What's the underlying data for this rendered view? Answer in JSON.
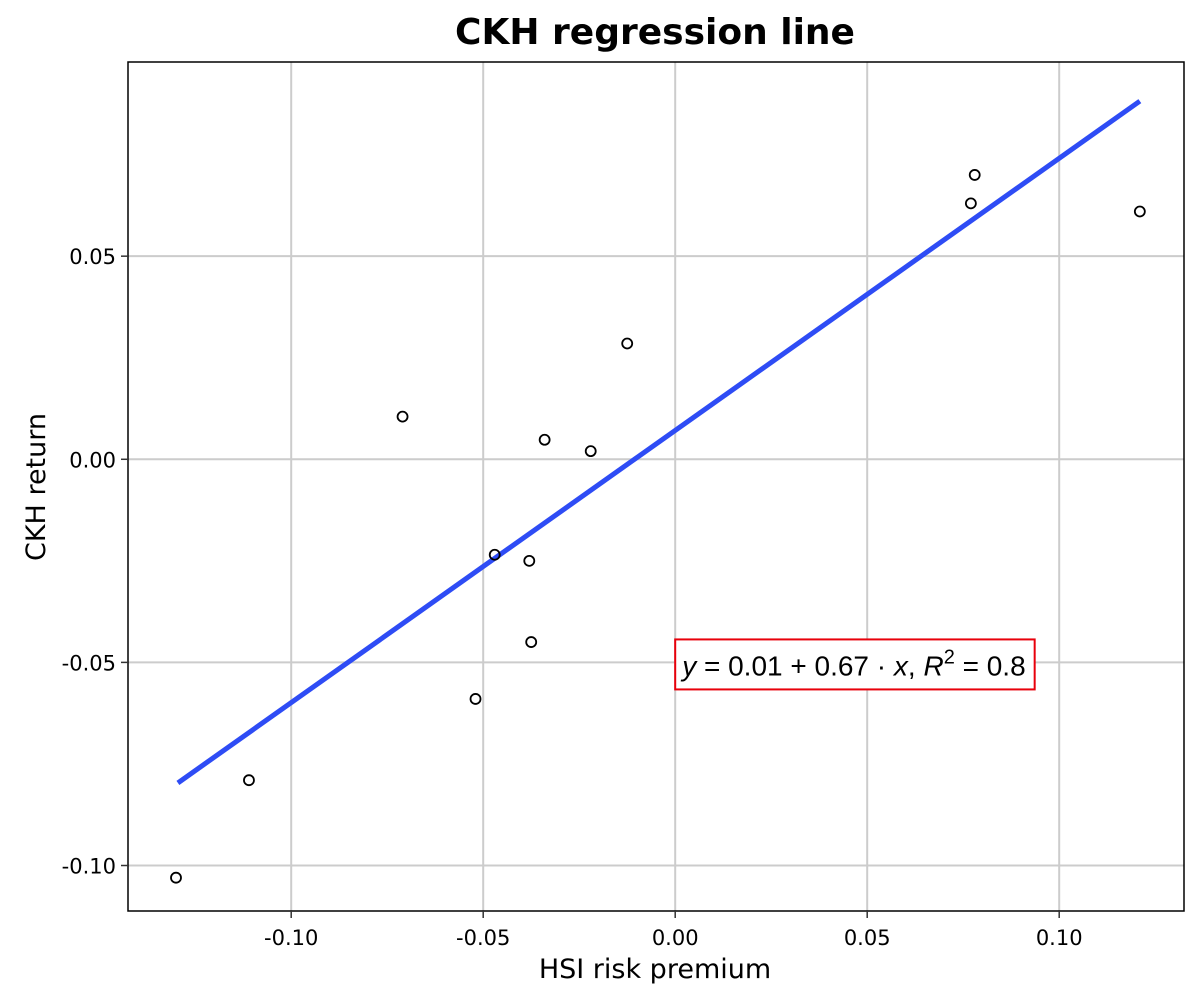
{
  "chart_data": {
    "type": "scatter",
    "title": "CKH regression line",
    "xlabel": "HSI risk premium",
    "ylabel": "CKH return",
    "xlim": [
      -0.1425,
      0.1325
    ],
    "ylim": [
      -0.1112,
      0.0978
    ],
    "x_ticks": [
      -0.1,
      -0.05,
      0.0,
      0.05,
      0.1
    ],
    "x_tick_labels": [
      "-0.10",
      "-0.05",
      "0.00",
      "0.05",
      "0.10"
    ],
    "y_ticks": [
      -0.1,
      -0.05,
      0.0,
      0.05
    ],
    "y_tick_labels": [
      "-0.10",
      "-0.05",
      "0.00",
      "0.05"
    ],
    "grid": true,
    "series": [
      {
        "type": "scatter",
        "marker": "open-circle",
        "color": "#000000",
        "points": [
          {
            "x": -0.13,
            "y": -0.103
          },
          {
            "x": -0.111,
            "y": -0.079
          },
          {
            "x": -0.071,
            "y": 0.0105
          },
          {
            "x": -0.052,
            "y": -0.059
          },
          {
            "x": -0.047,
            "y": -0.0235
          },
          {
            "x": -0.038,
            "y": -0.025
          },
          {
            "x": -0.0375,
            "y": -0.045
          },
          {
            "x": -0.034,
            "y": 0.0048
          },
          {
            "x": -0.022,
            "y": 0.002
          },
          {
            "x": -0.0125,
            "y": 0.0285
          },
          {
            "x": 0.077,
            "y": 0.063
          },
          {
            "x": 0.078,
            "y": 0.07
          },
          {
            "x": 0.121,
            "y": 0.061
          }
        ]
      },
      {
        "type": "line",
        "color": "#2e4cf5",
        "intercept": 0.0071,
        "slope": 0.67,
        "x_range": [
          -0.1295,
          0.121
        ]
      }
    ],
    "annotation": {
      "text_y": "y",
      "text_eq": " = 0.01 + 0.67 · ",
      "text_x": "x",
      "text_sep": ",  ",
      "text_r": "R",
      "text_sup": "2",
      "text_val": " = 0.8",
      "anchor_x": 0.0,
      "anchor_y": -0.0505,
      "border_color": "#e8000b"
    },
    "colors": {
      "grid": "#cccccc",
      "frame": "#000000",
      "line": "#2e4cf5",
      "points": "#000000"
    }
  }
}
